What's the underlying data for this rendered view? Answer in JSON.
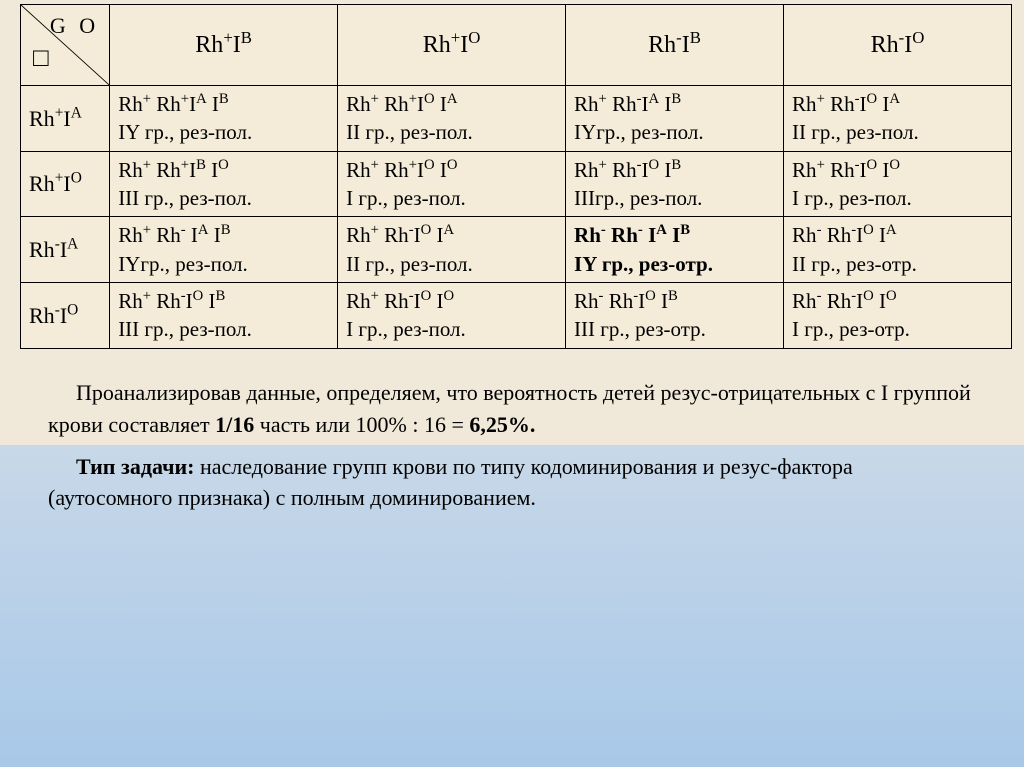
{
  "header": {
    "go": "G O",
    "square": "□",
    "cols": [
      "Rh<sup>+</sup>I<sup>B</sup>",
      "Rh<sup>+</sup>I<sup>O</sup>",
      "Rh<sup>-</sup>I<sup>B</sup>",
      "Rh<sup>-</sup>I<sup>O</sup>"
    ]
  },
  "rows": [
    {
      "head": "Rh<sup>+</sup>I<sup>A</sup>",
      "cells": [
        {
          "g": "Rh<sup>+</sup> Rh<sup>+</sup>I<sup>A</sup> I<sup>B</sup>",
          "p": "IY гр., рез-пол."
        },
        {
          "g": "Rh<sup>+</sup> Rh<sup>+</sup>I<sup>O</sup> I<sup>A</sup>",
          "p": "II гр., рез-пол."
        },
        {
          "g": "Rh<sup>+</sup> Rh<sup>-</sup>I<sup>A</sup> I<sup>B</sup>",
          "p": "IYгр., рез-пол."
        },
        {
          "g": "Rh<sup>+</sup> Rh<sup>-</sup>I<sup>O</sup> I<sup>A</sup>",
          "p": "II гр., рез-пол."
        }
      ]
    },
    {
      "head": "Rh<sup>+</sup>I<sup>O</sup>",
      "cells": [
        {
          "g": "Rh<sup>+</sup> Rh<sup>+</sup>I<sup>B</sup> I<sup>O</sup>",
          "p": "III гр., рез-пол."
        },
        {
          "g": "Rh<sup>+</sup> Rh<sup>+</sup>I<sup>O</sup> I<sup>O</sup>",
          "p": "I гр., рез-пол."
        },
        {
          "g": "Rh<sup>+</sup> Rh<sup>-</sup>I<sup>O</sup> I<sup>B</sup>",
          "p": "IIIгр., рез-пол."
        },
        {
          "g": "Rh<sup>+</sup> Rh<sup>-</sup>I<sup>O</sup> I<sup>O</sup>",
          "p": "I гр., рез-пол."
        }
      ]
    },
    {
      "head": "Rh<sup>-</sup>I<sup>A</sup>",
      "cells": [
        {
          "g": "Rh<sup>+</sup> Rh<sup>-</sup> I<sup>A</sup> I<sup>B</sup>",
          "p": "IYгр., рез-пол."
        },
        {
          "g": "Rh<sup>+</sup> Rh<sup>-</sup>I<sup>O</sup> I<sup>A</sup>",
          "p": "II гр., рез-пол."
        },
        {
          "g": "Rh<sup>-</sup> Rh<sup>-</sup> I<sup>A</sup> I<sup>B</sup>",
          "p": "IY гр., рез-отр.",
          "bold": true
        },
        {
          "g": "Rh<sup>-</sup> Rh<sup>-</sup>I<sup>O</sup> I<sup>A</sup>",
          "p": "II гр., рез-отр."
        }
      ]
    },
    {
      "head": "Rh<sup>-</sup>I<sup>O</sup>",
      "cells": [
        {
          "g": "Rh<sup>+</sup> Rh<sup>-</sup>I<sup>O</sup> I<sup>B</sup>",
          "p": "III гр., рез-пол."
        },
        {
          "g": "Rh<sup>+</sup> Rh<sup>-</sup>I<sup>O</sup> I<sup>O</sup>",
          "p": "I гр., рез-пол."
        },
        {
          "g": "Rh<sup>-</sup> Rh<sup>-</sup>I<sup>O</sup> I<sup>B</sup>",
          "p": "III гр., рез-отр."
        },
        {
          "g": "Rh<sup>-</sup> Rh<sup>-</sup>I<sup>O</sup> I<sup>O</sup>",
          "p": "I гр., рез-отр."
        }
      ]
    }
  ],
  "paragraphs": [
    "Проанализировав данные, определяем, что вероятность детей резус-отрицательных с I группой крови составляет <b>1/16</b> часть или 100% : 16 = <b>6,25%.</b>",
    "<b>Тип задачи:</b> наследование групп крови по типу кодоминирования и резус-фактора (аутосомного признака) с полным доминированием."
  ],
  "colors": {
    "table_bg": "#f4ecd8",
    "border": "#000000",
    "text": "#000000",
    "gradient_top": "#f0e8d8",
    "gradient_bottom": "#a8c8e8"
  },
  "layout": {
    "col_widths_pct": [
      9,
      23,
      23,
      22,
      23
    ],
    "font_size_cell": 21,
    "font_size_para": 22
  }
}
